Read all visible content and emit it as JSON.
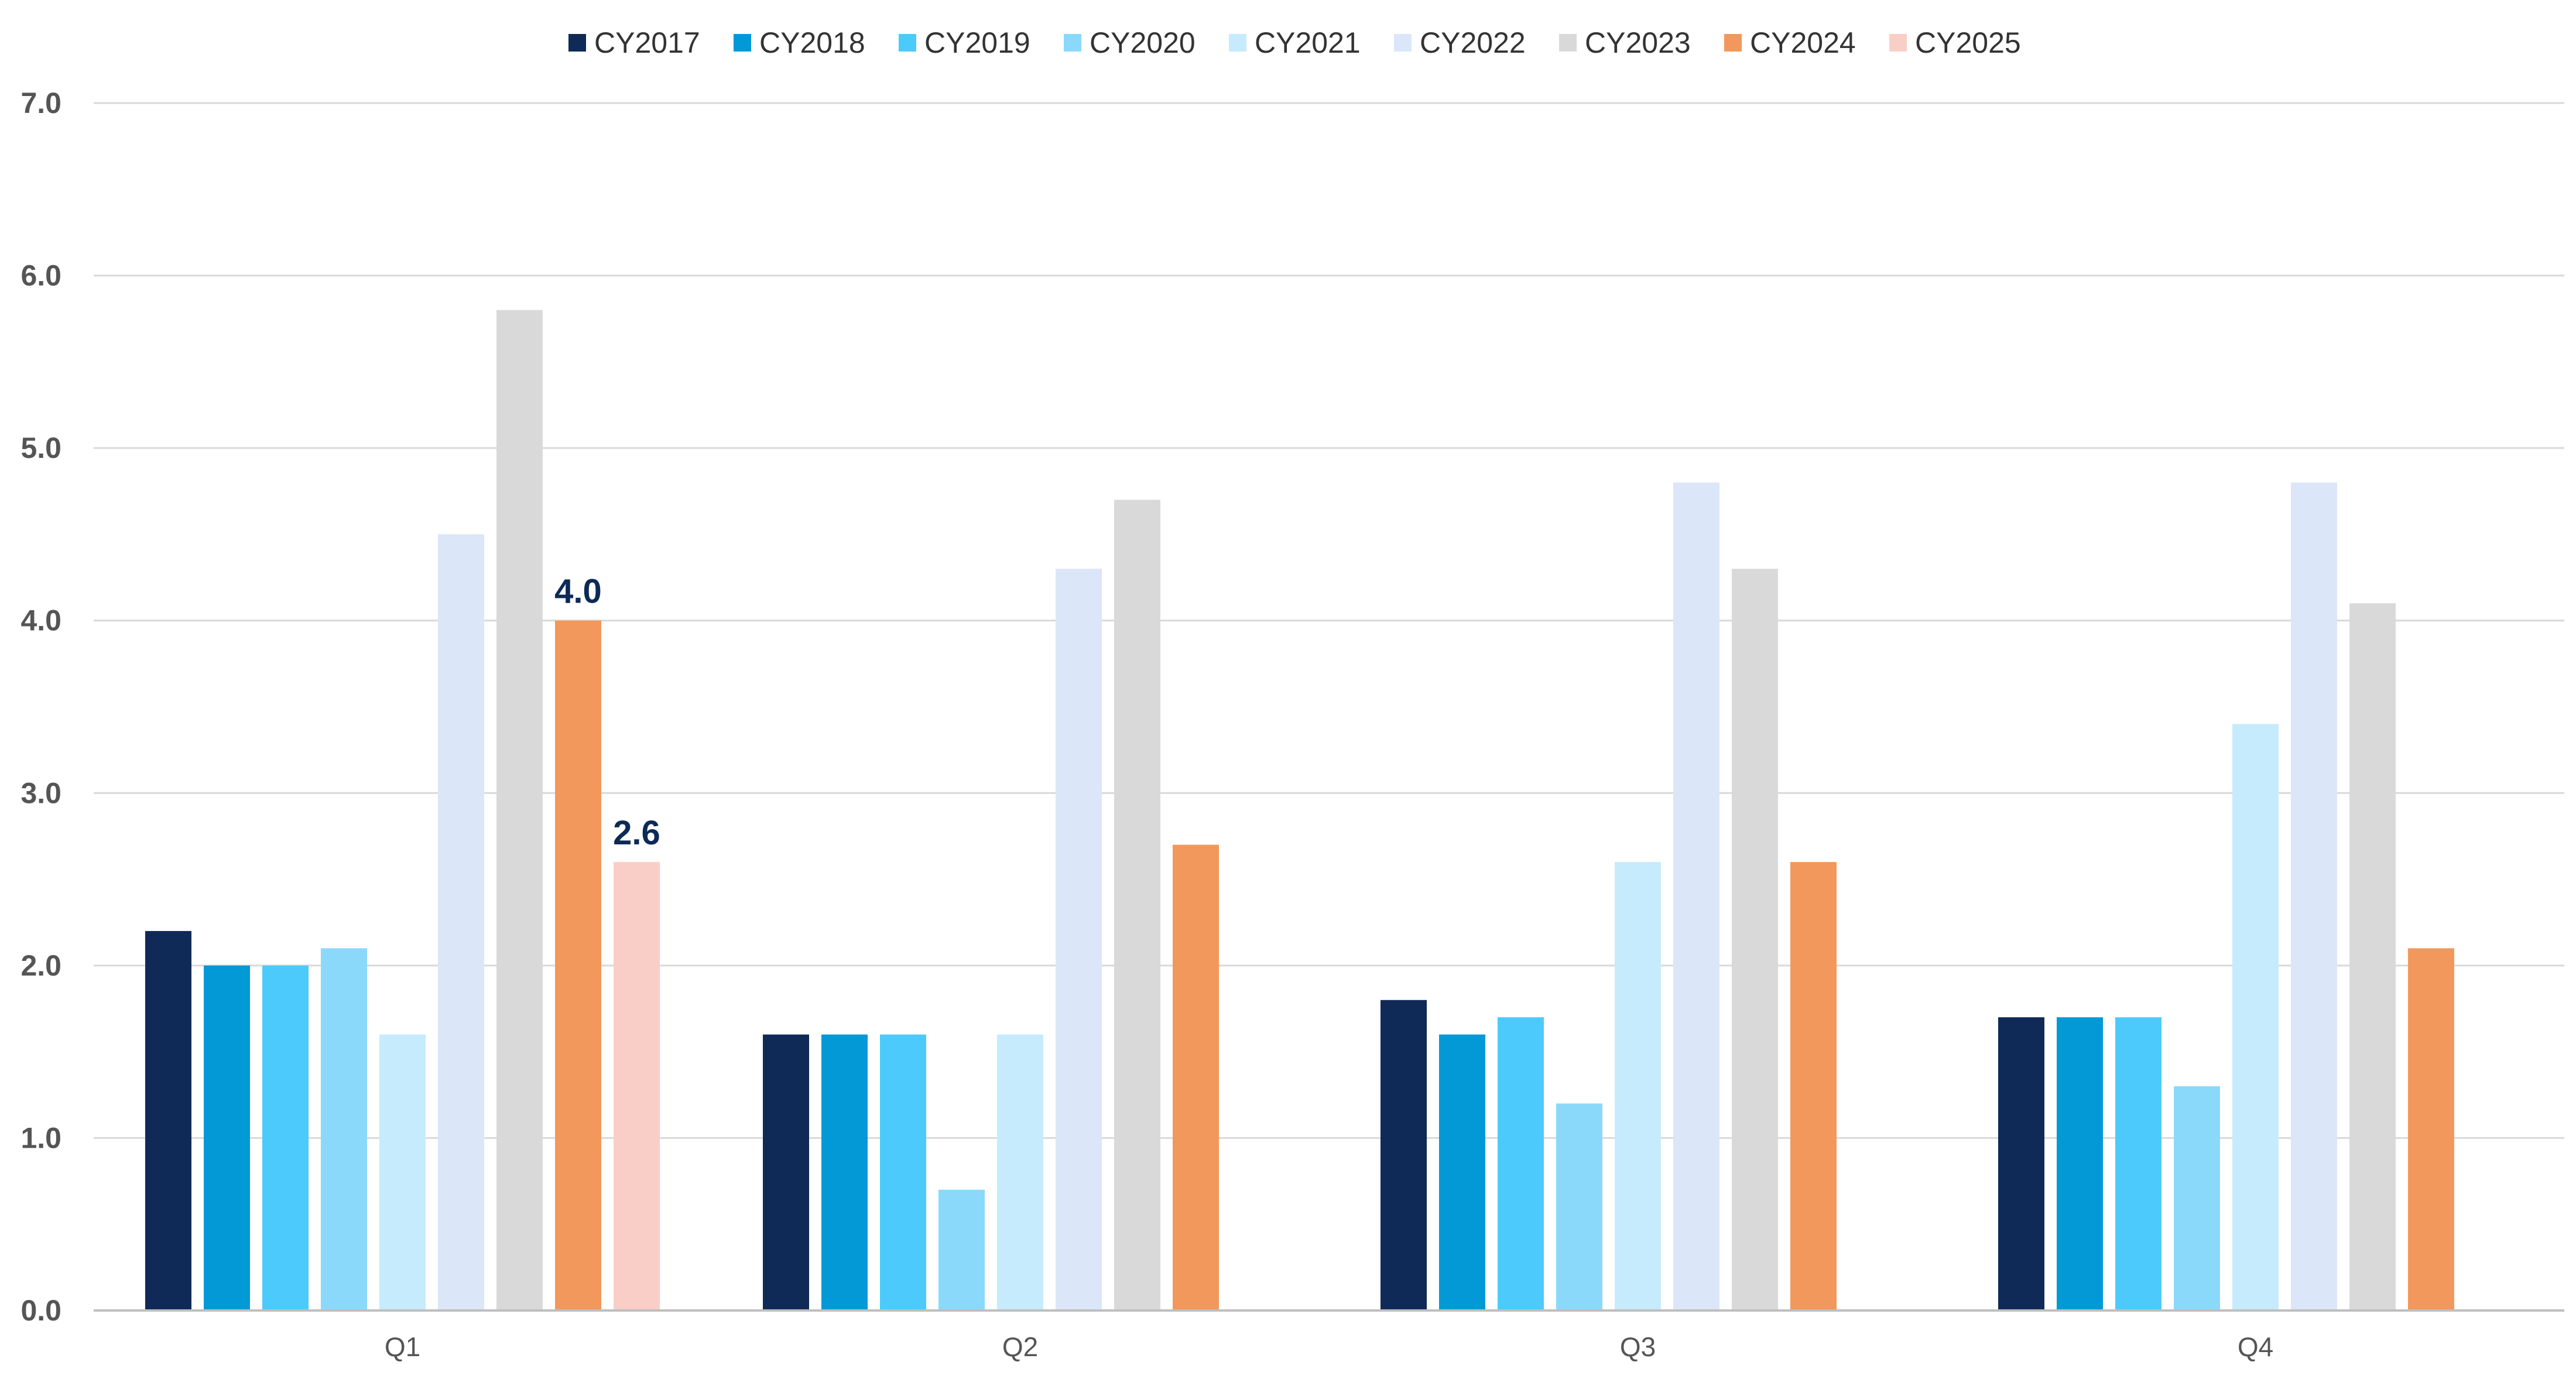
{
  "chart_data": {
    "type": "bar",
    "title": "",
    "xlabel": "",
    "ylabel": "",
    "ylim": [
      0,
      7
    ],
    "yticks": [
      "0.0",
      "1.0",
      "2.0",
      "3.0",
      "4.0",
      "5.0",
      "6.0",
      "7.0"
    ],
    "grid": true,
    "legend_position": "top-center",
    "categories": [
      "Q1",
      "Q2",
      "Q3",
      "Q4"
    ],
    "series": [
      {
        "name": "CY2017",
        "color": "#0f2a56",
        "values": [
          2.2,
          1.6,
          1.8,
          1.7
        ]
      },
      {
        "name": "CY2018",
        "color": "#0399d6",
        "values": [
          2.0,
          1.6,
          1.6,
          1.7
        ]
      },
      {
        "name": "CY2019",
        "color": "#4ccafb",
        "values": [
          2.0,
          1.6,
          1.7,
          1.7
        ]
      },
      {
        "name": "CY2020",
        "color": "#8ad9fb",
        "values": [
          2.1,
          0.7,
          1.2,
          1.3
        ]
      },
      {
        "name": "CY2021",
        "color": "#c6ebfd",
        "values": [
          1.6,
          1.6,
          2.6,
          3.4
        ]
      },
      {
        "name": "CY2022",
        "color": "#dbe6f8",
        "values": [
          4.5,
          4.3,
          4.8,
          4.8
        ]
      },
      {
        "name": "CY2023",
        "color": "#d9d9d9",
        "values": [
          5.8,
          4.7,
          4.3,
          4.1
        ]
      },
      {
        "name": "CY2024",
        "color": "#f2985c",
        "values": [
          4.0,
          2.7,
          2.6,
          2.1
        ]
      },
      {
        "name": "CY2025",
        "color": "#f9cec6",
        "values": [
          2.6,
          null,
          null,
          null
        ]
      }
    ],
    "data_labels": [
      {
        "series": "CY2024",
        "category": "Q1",
        "text": "4.0"
      },
      {
        "series": "CY2025",
        "category": "Q1",
        "text": "2.6"
      }
    ]
  }
}
